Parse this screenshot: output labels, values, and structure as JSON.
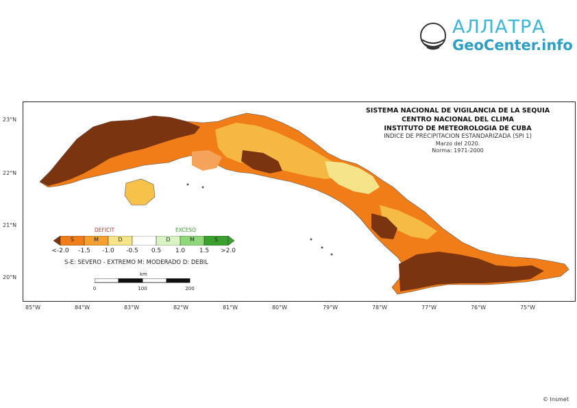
{
  "header": {
    "logo_name": "АЛЛАТРА",
    "logo_site": "GeoCenter.info"
  },
  "map": {
    "title_lines": [
      "SISTEMA NACIONAL DE VIGILANCIA DE LA SEQUIA",
      "CENTRO NACIONAL DEL CLIMA",
      "INSTITUTO DE METEOROLOGIA DE CUBA"
    ],
    "index_title": "INDICE DE PRECIPITACION ESTANDARIZADA (SPI 1)",
    "period": "Marzo del 2020.",
    "norm": "Norma: 1971-2000",
    "lat_labels": [
      "23°N",
      "22°N",
      "21°N",
      "20°N"
    ],
    "lon_labels": [
      "85°W",
      "84°W",
      "83°W",
      "82°W",
      "81°W",
      "80°W",
      "79°W",
      "78°W",
      "77°W",
      "76°W",
      "75°W"
    ]
  },
  "legend": {
    "deficit_label": "DEFICIT",
    "exceso_label": "EXCESO",
    "classes": [
      "S",
      "M",
      "D",
      "",
      "D",
      "M",
      "S"
    ],
    "ticks": [
      "<-2.0",
      "-1.5",
      "-1.0",
      "-0.5",
      "0.5",
      "1.0",
      "1.5",
      ">2.0"
    ],
    "note": "S-E: SEVERO - EXTREMO  M: MODERADO  D: DEBIL",
    "colors": {
      "severe_dry": "#7a3410",
      "moderate_dry": "#f07d18",
      "weak_dry": "#f6e48a",
      "normal": "#ffffff",
      "weak_wet": "#d9f5c3",
      "moderate_wet": "#8fd97a",
      "severe_wet": "#3aa02e"
    }
  },
  "scale_bar": {
    "unit": "km",
    "ticks": [
      "0",
      "100",
      "200"
    ]
  },
  "credit": "© Insmet"
}
